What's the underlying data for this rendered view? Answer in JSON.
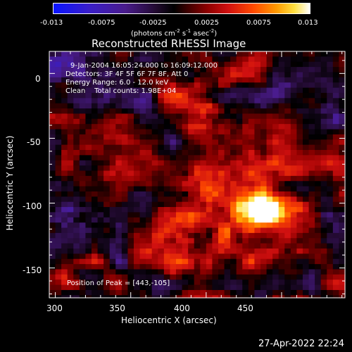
{
  "colors": {
    "background": "#000000",
    "foreground": "#ffffff"
  },
  "colorbar": {
    "tick_labels": [
      "-0.013",
      "-0.0075",
      "-0.0025",
      "0.0025",
      "0.0075",
      "0.013"
    ],
    "unit_main": "(photons cm",
    "unit_exp1": "-2",
    "unit_mid": " s",
    "unit_exp2": "-1",
    "unit_mid2": " asec",
    "unit_exp3": "-2",
    "unit_end": ")",
    "range": [
      -0.013,
      0.013
    ]
  },
  "chart_data": {
    "type": "heatmap",
    "title": "Reconstructed RHESSI Image",
    "xlabel": "Heliocentric X (arcsec)",
    "ylabel": "Heliocentric Y (arcsec)",
    "xlim": [
      296,
      492
    ],
    "ylim": [
      -173,
      17
    ],
    "x_ticks": [
      300,
      350,
      400,
      450
    ],
    "y_ticks": [
      0,
      -50,
      -100,
      -150
    ],
    "peak_position": [
      443,
      -105
    ],
    "annotations": [
      "9-Jan-2004 16:05:24.000 to 16:09:12.000",
      "Detectors: 3F 4F 5F 6F 7F 8F, Att 0",
      "Energy Range: 6.0 - 12.0 keV",
      "Clean    Total counts: 1.98E+04"
    ],
    "peak_label": "Position of Peak = [443,-105]"
  },
  "footer": {
    "timestamp": "27-Apr-2022 22:24"
  }
}
